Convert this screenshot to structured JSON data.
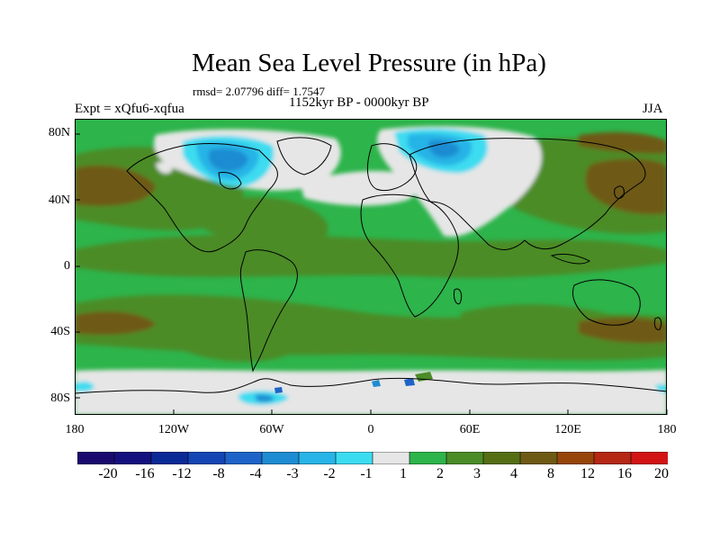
{
  "header": {
    "title": "Mean Sea Level Pressure (in hPa)",
    "stats": "rmsd= 2.07796 diff= 1.7547",
    "period": "1152kyr BP - 0000kyr BP",
    "experiment": "Expt = xQfu6-xqfua",
    "season": "JJA"
  },
  "axes": {
    "lat_labels": [
      "80N",
      "40N",
      "0",
      "40S",
      "80S"
    ],
    "lon_labels": [
      "180",
      "120W",
      "60W",
      "0",
      "60E",
      "120E",
      "180"
    ]
  },
  "colorbar": {
    "labels": [
      "-20",
      "-16",
      "-12",
      "-8",
      "-4",
      "-3",
      "-2",
      "-1",
      "1",
      "2",
      "3",
      "4",
      "8",
      "12",
      "16",
      "20"
    ],
    "colors": [
      "#1a0a6e",
      "#14107e",
      "#0a2a96",
      "#1346b4",
      "#1e64c8",
      "#1e8cd2",
      "#28b4e6",
      "#3cdcf0",
      "#e6e6e6",
      "#2db44b",
      "#4b8c28",
      "#556e14",
      "#6e5a14",
      "#96460a",
      "#b42814",
      "#d21414"
    ]
  },
  "map_colors": {
    "ocean_base": "#2db44b",
    "neutral": "#e6e6e6",
    "olive": "#4b8c28",
    "brown": "#6e5a14",
    "light_blue": "#3cdcf0",
    "mid_blue": "#28b4e6",
    "blue": "#1e8cd2",
    "dark_blue": "#1e64c8",
    "coast": "#000000"
  }
}
